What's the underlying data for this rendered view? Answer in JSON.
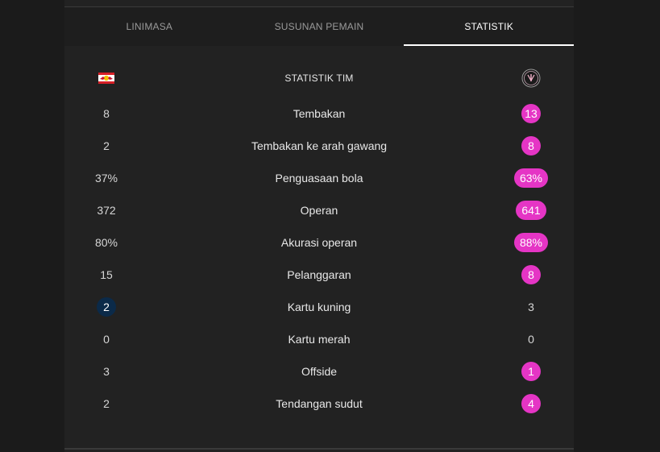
{
  "tabs": [
    {
      "label": "LINIMASA",
      "active": false
    },
    {
      "label": "SUSUNAN PEMAIN",
      "active": false
    },
    {
      "label": "STATISTIK",
      "active": true
    }
  ],
  "header": {
    "title": "STATISTIK TIM",
    "home_logo": "red-bulls-crest-icon",
    "away_logo": "inter-miami-crest-icon"
  },
  "colors": {
    "away_highlight": "#e535c5",
    "home_highlight": "#0b2a49",
    "panel_bg": "#222222",
    "page_bg": "#1b1b1b"
  },
  "stats": [
    {
      "label": "Tembakan",
      "home": "8",
      "away": "13",
      "leader": "away"
    },
    {
      "label": "Tembakan ke arah gawang",
      "home": "2",
      "away": "8",
      "leader": "away"
    },
    {
      "label": "Penguasaan bola",
      "home": "37%",
      "away": "63%",
      "leader": "away"
    },
    {
      "label": "Operan",
      "home": "372",
      "away": "641",
      "leader": "away"
    },
    {
      "label": "Akurasi operan",
      "home": "80%",
      "away": "88%",
      "leader": "away"
    },
    {
      "label": "Pelanggaran",
      "home": "15",
      "away": "8",
      "leader": "away"
    },
    {
      "label": "Kartu kuning",
      "home": "2",
      "away": "3",
      "leader": "home"
    },
    {
      "label": "Kartu merah",
      "home": "0",
      "away": "0",
      "leader": "none"
    },
    {
      "label": "Offside",
      "home": "3",
      "away": "1",
      "leader": "away"
    },
    {
      "label": "Tendangan sudut",
      "home": "2",
      "away": "4",
      "leader": "away"
    }
  ]
}
